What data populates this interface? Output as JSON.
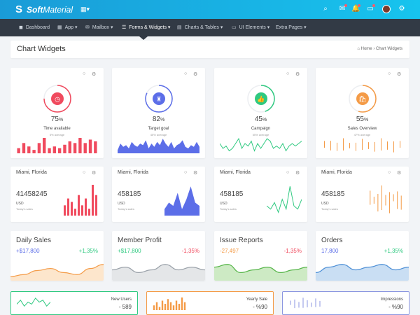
{
  "brand": {
    "logo_mark": "S",
    "name_bold": "Soft",
    "name_regular": "Material",
    "grid_caret": "▾"
  },
  "colors": {
    "red": "#f04a5e",
    "blue": "#5c6ee8",
    "green": "#2fc980",
    "orange": "#f49b47",
    "topbar": "#1a9bd7",
    "nav": "#323a45"
  },
  "nav": [
    {
      "icon": "dashboard-icon",
      "glyph": "◼",
      "label": "Dashboard"
    },
    {
      "icon": "app-icon",
      "glyph": "▦",
      "label": "App ▾"
    },
    {
      "icon": "mailbox-icon",
      "glyph": "✉",
      "label": "Mailbox ▾"
    },
    {
      "icon": "forms-icon",
      "glyph": "☰",
      "label": "Forms & Widgets ▾"
    },
    {
      "icon": "charts-icon",
      "glyph": "▤",
      "label": "Charts & Tables ▾"
    },
    {
      "icon": "ui-elements-icon",
      "glyph": "▭",
      "label": "UI Elements ▾"
    },
    {
      "icon": "extra-pages-icon",
      "glyph": "",
      "label": "Extra Pages ▾"
    }
  ],
  "page": {
    "title": "Chart Widgets",
    "breadcrumb_home": "⌂ Home",
    "breadcrumb_sep": "›",
    "breadcrumb_current": "Chart Widgets"
  },
  "gauges": [
    {
      "percent": "75",
      "unit": "%",
      "label": "Time available",
      "sub": "5% average",
      "color": "#f04a5e",
      "glyph": "◷",
      "fraction": 0.75,
      "spark": "bars",
      "values": [
        3,
        6,
        4,
        2,
        6,
        9,
        3,
        4,
        3,
        5,
        7,
        6,
        9,
        6,
        8,
        7
      ]
    },
    {
      "percent": "82",
      "unit": "%",
      "label": "Target goal",
      "sub": "45% average",
      "color": "#5c6ee8",
      "glyph": "♜",
      "fraction": 0.82,
      "spark": "area",
      "values": [
        2,
        6,
        4,
        5,
        3,
        7,
        5,
        4,
        6,
        5,
        8,
        3,
        6,
        4,
        7,
        5,
        9,
        6,
        4,
        7,
        3,
        5,
        6,
        8,
        4,
        3,
        5,
        4,
        7,
        4
      ]
    },
    {
      "percent": "45",
      "unit": "%",
      "label": "Campaign",
      "sub": "55% average",
      "color": "#2fc980",
      "glyph": "👍",
      "fraction": 0.45,
      "spark": "line",
      "values": [
        4,
        2,
        3,
        1,
        2,
        4,
        6,
        2,
        4,
        3,
        5,
        1,
        4,
        2,
        4,
        6,
        5,
        2,
        3,
        2,
        4,
        1,
        3,
        4,
        3,
        4,
        5
      ]
    },
    {
      "percent": "55",
      "unit": "%",
      "label": "Sales Overview",
      "sub": "47% average",
      "color": "#f49b47",
      "glyph": "🛍",
      "fraction": 0.55,
      "spark": "ticks",
      "values": [
        5,
        7,
        6,
        9,
        4,
        6,
        8,
        5,
        7,
        9,
        6,
        8,
        5
      ]
    }
  ],
  "location_cards": [
    {
      "city": "Miami, Florida",
      "value": "41458245",
      "currency": "USD",
      "note": "Today's sales",
      "color": "#f04a5e",
      "spark": "bars",
      "values": [
        3,
        5,
        4,
        2,
        6,
        3,
        5,
        2,
        9,
        6
      ]
    },
    {
      "city": "Miami, Florida",
      "value": "458185",
      "currency": "USD",
      "note": "Today's sales",
      "color": "#5c6ee8",
      "spark": "area",
      "values": [
        2,
        4,
        3,
        7,
        2,
        5,
        9,
        4,
        3
      ]
    },
    {
      "city": "Miami, Florida",
      "value": "458185",
      "currency": "USD",
      "note": "Today's sales",
      "color": "#2fc980",
      "spark": "line",
      "values": [
        3,
        2,
        4,
        1,
        5,
        2,
        9,
        3,
        2,
        5
      ]
    },
    {
      "city": "Miami, Florida",
      "value": "458185",
      "currency": "USD",
      "note": "Today's sales",
      "color": "#f49b47",
      "spark": "ticks",
      "values": [
        4,
        2,
        5,
        7,
        3,
        6,
        2,
        5,
        4
      ]
    }
  ],
  "stat_cards": [
    {
      "title": "Daily Sales",
      "left": "+$17,800",
      "left_color": "#5c6ee8",
      "right": "+1,35%",
      "right_color": "#2fc980",
      "color": "#f49b47",
      "fill": "#fde6cc",
      "values": [
        2,
        3,
        5,
        6,
        4,
        3,
        6,
        8
      ]
    },
    {
      "title": "Member Profit",
      "left": "+$17,800",
      "left_color": "#2fc980",
      "right": "-1,35%",
      "right_color": "#f04a5e",
      "color": "#9aa1a9",
      "fill": "#e4e6e8",
      "values": [
        4,
        5,
        3,
        4,
        6,
        4,
        5,
        4
      ]
    },
    {
      "title": "Issue Reports",
      "left": "-27,497",
      "left_color": "#f49b47",
      "right": "-1,35%",
      "right_color": "#f04a5e",
      "color": "#55b548",
      "fill": "#cdeac4",
      "values": [
        5,
        6,
        3,
        4,
        5,
        3,
        4,
        5
      ]
    },
    {
      "title": "Orders",
      "left": "17,800",
      "left_color": "#5c6ee8",
      "right": "+1,35%",
      "right_color": "#2fc980",
      "color": "#4d8fd6",
      "fill": "#c9def3",
      "values": [
        3,
        5,
        6,
        4,
        5,
        6,
        4,
        5
      ]
    }
  ],
  "bottom_cards": [
    {
      "label": "New Users",
      "value": "- 589",
      "color": "#2fc980",
      "spark": "line",
      "values": [
        3,
        5,
        2,
        4,
        3,
        6,
        4,
        5,
        2,
        4
      ]
    },
    {
      "label": "Yearly Sale",
      "value": "- %90",
      "color": "#f49b47",
      "spark": "bars",
      "values": [
        3,
        5,
        2,
        6,
        4,
        7,
        5,
        3,
        6,
        4,
        8,
        5
      ]
    },
    {
      "label": "Impressions",
      "value": "- %90",
      "color": "#8b96e0",
      "spark": "ticks",
      "values": [
        3,
        6,
        4,
        7,
        5,
        3,
        6,
        4
      ]
    }
  ]
}
